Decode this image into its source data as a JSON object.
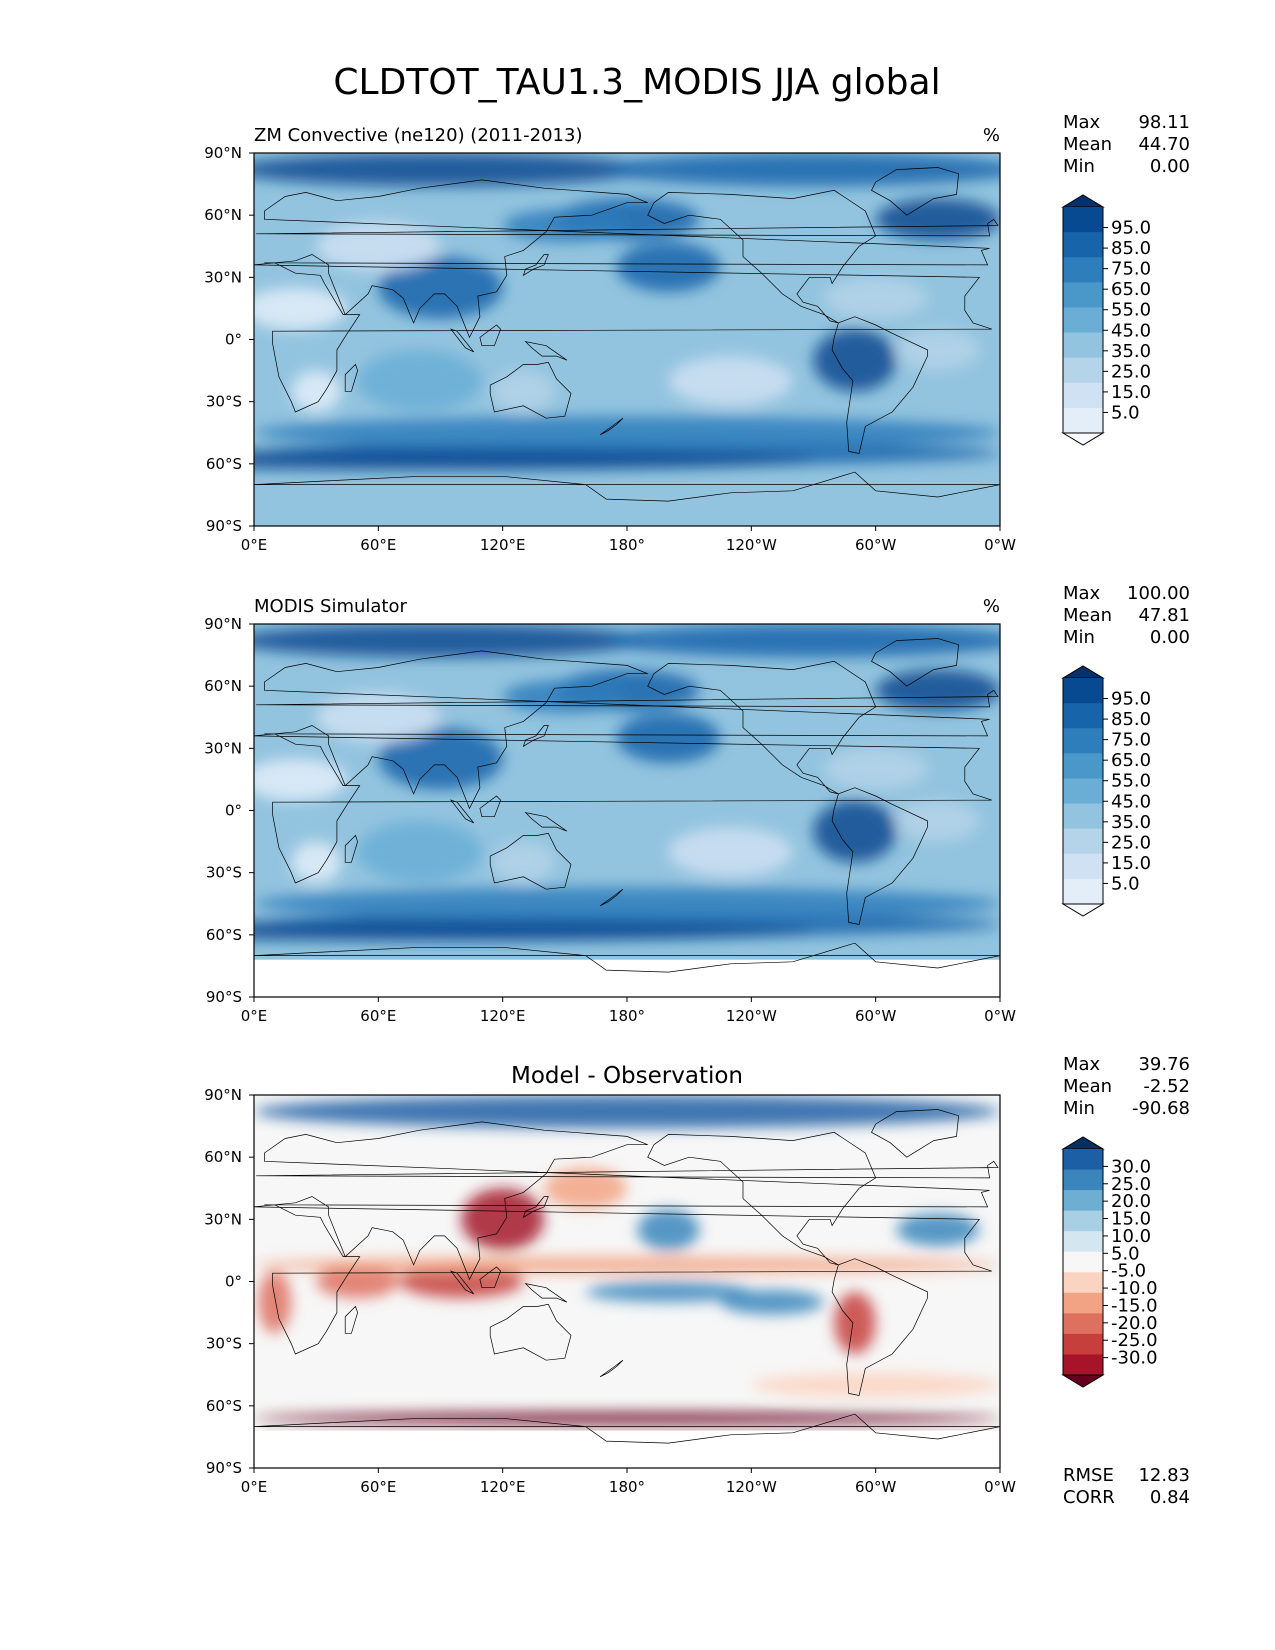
{
  "title": "CLDTOT_TAU1.3_MODIS JJA global",
  "xticks": [
    "0°E",
    "60°E",
    "120°E",
    "180°",
    "120°W",
    "60°W",
    "0°W"
  ],
  "yticks": [
    "90°N",
    "60°N",
    "30°N",
    "0°",
    "30°S",
    "60°S",
    "90°S"
  ],
  "panels": [
    {
      "id": "test",
      "left_title": "ZM Convective (ne120) (2011-2013)",
      "center_title": "",
      "units": "%",
      "stats": {
        "max_label": "Max",
        "max": "98.11",
        "mean_label": "Mean",
        "mean": "44.70",
        "min_label": "Min",
        "min": "0.00"
      },
      "colorbar": [
        "95.0",
        "85.0",
        "75.0",
        "65.0",
        "55.0",
        "45.0",
        "35.0",
        "25.0",
        "15.0",
        "5.0"
      ],
      "colormap": "Blues",
      "extra_stats": null
    },
    {
      "id": "reference",
      "left_title": "MODIS Simulator",
      "center_title": "",
      "units": "%",
      "stats": {
        "max_label": "Max",
        "max": "100.00",
        "mean_label": "Mean",
        "mean": "47.81",
        "min_label": "Min",
        "min": "0.00"
      },
      "colorbar": [
        "95.0",
        "85.0",
        "75.0",
        "65.0",
        "55.0",
        "45.0",
        "35.0",
        "25.0",
        "15.0",
        "5.0"
      ],
      "colormap": "Blues",
      "extra_stats": null
    },
    {
      "id": "difference",
      "left_title": "",
      "center_title": "Model - Observation",
      "units": "",
      "stats": {
        "max_label": "Max",
        "max": "39.76",
        "mean_label": "Mean",
        "mean": "-2.52",
        "min_label": "Min",
        "min": "-90.68"
      },
      "colorbar": [
        "30.0",
        "25.0",
        "20.0",
        "15.0",
        "10.0",
        "5.0",
        "-5.0",
        "-10.0",
        "-15.0",
        "-20.0",
        "-25.0",
        "-30.0"
      ],
      "colormap": "RdBu",
      "extra_stats": {
        "rmse_label": "RMSE",
        "rmse": "12.83",
        "corr_label": "CORR",
        "corr": "0.84"
      }
    }
  ],
  "colors": {
    "blues": [
      "#f7fbff",
      "#e3eef9",
      "#cfe1f2",
      "#b5d4e9",
      "#93c4df",
      "#6aaed6",
      "#4a98c9",
      "#2e7ebc",
      "#1764ab",
      "#084a91",
      "#08306b"
    ],
    "rdbu": [
      "#67001f",
      "#a51429",
      "#c63f3c",
      "#de7060",
      "#f2a384",
      "#fad3c1",
      "#f7f7f7",
      "#d4e6f0",
      "#a8cfe4",
      "#6eaed2",
      "#3a86bc",
      "#1c5fa4",
      "#053061"
    ],
    "land_line": "#000000"
  },
  "map_description": "Global lat-lon maps of total cloud fraction (tau > 1.3), longitude 0E to 360, latitude 90S to 90N"
}
